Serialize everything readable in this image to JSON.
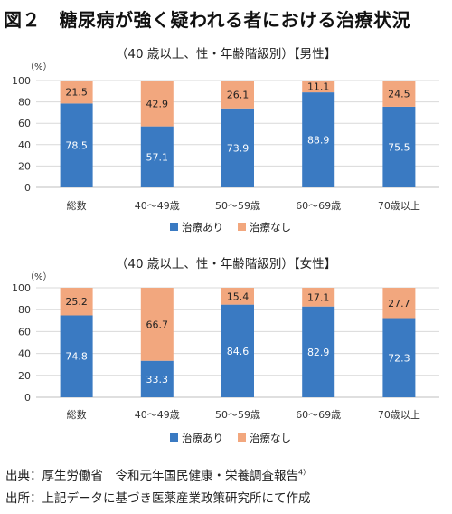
{
  "title": "図２　糖尿病が強く疑われる者における治療状況",
  "source_line1_main": "出典：厚生労働省　令和元年国民健康・栄養調査報告",
  "source_line1_sup": "4）",
  "source_line2": "出所：上記データに基づき医薬産業政策研究所にて作成",
  "colors": {
    "treated": "#3a7ac2",
    "untreated": "#f2a77e",
    "grid": "#d9d9d9",
    "axis": "#bfbfbf"
  },
  "chart_data": [
    {
      "type": "bar",
      "stacked": true,
      "subtitle": "（40 歳以上、性・年齢階級別）【男性】",
      "ylabel": "（%）",
      "ylim": [
        0,
        100
      ],
      "yticks": [
        0,
        20,
        40,
        60,
        80,
        100
      ],
      "categories": [
        "総数",
        "40～49歳",
        "50～59歳",
        "60～69歳",
        "70歳以上"
      ],
      "series": [
        {
          "name": "治療あり",
          "values": [
            78.5,
            57.1,
            73.9,
            88.9,
            75.5
          ]
        },
        {
          "name": "治療なし",
          "values": [
            21.5,
            42.9,
            26.1,
            11.1,
            24.5
          ]
        }
      ],
      "legend_position": "bottom"
    },
    {
      "type": "bar",
      "stacked": true,
      "subtitle": "（40 歳以上、性・年齢階級別）【女性】",
      "ylabel": "（%）",
      "ylim": [
        0,
        100
      ],
      "yticks": [
        0,
        20,
        40,
        60,
        80,
        100
      ],
      "categories": [
        "総数",
        "40～49歳",
        "50～59歳",
        "60～69歳",
        "70歳以上"
      ],
      "series": [
        {
          "name": "治療あり",
          "values": [
            74.8,
            33.3,
            84.6,
            82.9,
            72.3
          ]
        },
        {
          "name": "治療なし",
          "values": [
            25.2,
            66.7,
            15.4,
            17.1,
            27.7
          ]
        }
      ],
      "legend_position": "bottom"
    }
  ]
}
